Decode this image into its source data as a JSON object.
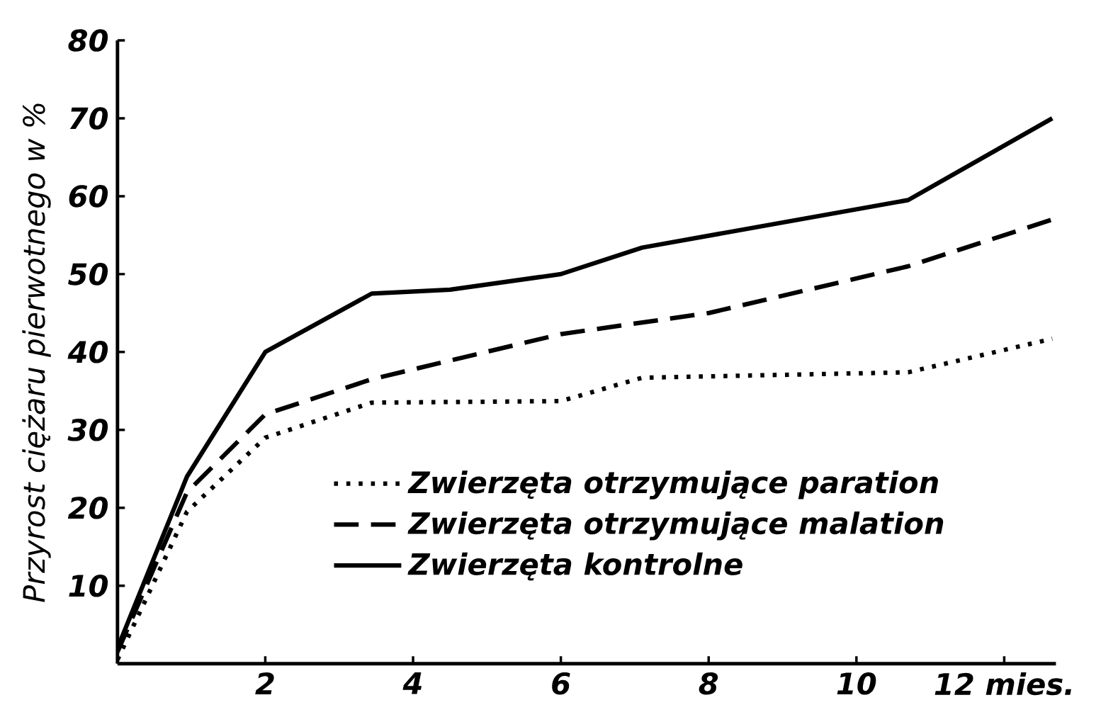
{
  "chart_data": {
    "type": "line",
    "ylabel": "Przyrost ciężaru pierwotnego w %",
    "xlim": [
      0,
      12.7
    ],
    "ylim": [
      0,
      80
    ],
    "xticks": [
      2,
      4,
      6,
      8,
      10,
      {
        "value": 12,
        "label": "12 mies."
      }
    ],
    "yticks": [
      10,
      20,
      30,
      40,
      50,
      60,
      70,
      80
    ],
    "legend": "bottom",
    "grid": false,
    "marker": "none",
    "series": [
      {
        "name": "Zwierzęta otrzymujące paration",
        "color": "#000000",
        "line_style": "dotted",
        "x": [
          0,
          0.94,
          2,
          3.44,
          6,
          7.1,
          10.7,
          12.65
        ],
        "values": [
          0.5,
          19.5,
          29,
          33.5,
          33.7,
          36.7,
          37.4,
          41.7
        ]
      },
      {
        "name": "Zwierzęta otrzymujące malation",
        "color": "#000000",
        "line_style": "dashed",
        "x": [
          0,
          0.94,
          2,
          3.44,
          6,
          8,
          10.7,
          12.65
        ],
        "values": [
          1.5,
          22,
          32,
          36.5,
          42.3,
          45,
          51,
          57
        ]
      },
      {
        "name": "Zwierzęta kontrolne",
        "color": "#000000",
        "line_style": "solid",
        "x": [
          0,
          0.94,
          2,
          3.44,
          4.5,
          6,
          7.1,
          10.7,
          12.65
        ],
        "values": [
          2,
          24,
          40,
          47.5,
          48,
          50,
          53.4,
          59.5,
          70
        ]
      }
    ]
  }
}
